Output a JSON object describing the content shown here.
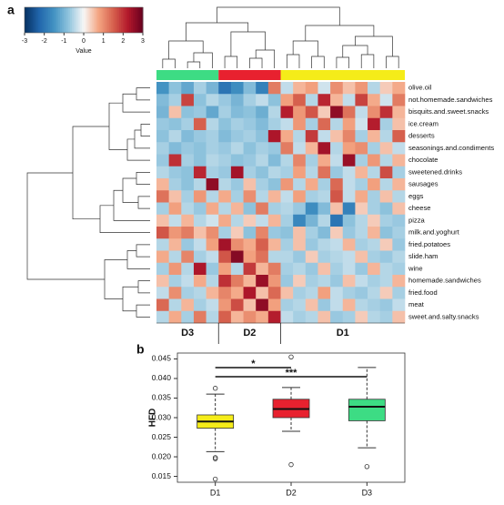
{
  "chart_data": [
    {
      "type": "heatmap",
      "panel": "a",
      "rows": [
        "olive.oil",
        "not.homemade.sandwiches",
        "bisquits.and.sweet.snacks",
        "ice.cream",
        "desserts",
        "seasonings.and.condiments",
        "chocolate",
        "sweetened.drinks",
        "sausages",
        "eggs",
        "cheese",
        "pizza",
        "milk.and.yoghurt",
        "fried.potatoes",
        "slide.ham",
        "wine",
        "homemade.sandwiches",
        "fried.food",
        "meat",
        "sweet.and.salty.snacks"
      ],
      "groups": [
        {
          "name": "D3",
          "color": "#3ddc84",
          "columns": 5
        },
        {
          "name": "D2",
          "color": "#e8212f",
          "columns": 5
        },
        {
          "name": "D1",
          "color": "#f5ec19",
          "columns": 10
        }
      ],
      "colorbar": {
        "label": "Value",
        "lim": [
          -3,
          3
        ],
        "ticks": [
          -3,
          -2,
          -1,
          0,
          1,
          2,
          3
        ],
        "colors": [
          "#053061",
          "#2166ac",
          "#4393c3",
          "#92c5de",
          "#f7f7f7",
          "#f4a582",
          "#d6604d",
          "#b2182b",
          "#67001f"
        ]
      },
      "values": [
        [
          -1.5,
          -0.8,
          -1.2,
          -0.6,
          -1.0,
          -2.0,
          -1.6,
          -0.9,
          -1.8,
          1.2,
          -0.4,
          0.6,
          0.8,
          -0.3,
          1.0,
          0.5,
          0.9,
          -0.5,
          0.4,
          0.7
        ],
        [
          -0.9,
          -0.6,
          1.8,
          -0.8,
          -0.5,
          -0.7,
          -1.0,
          -0.6,
          -0.4,
          -0.8,
          0.8,
          1.5,
          -0.5,
          2.1,
          0.6,
          -0.4,
          1.8,
          0.7,
          -0.3,
          1.2
        ],
        [
          -1.0,
          0.5,
          -0.8,
          -0.7,
          -1.2,
          -0.6,
          -0.9,
          -0.8,
          -1.1,
          -0.5,
          2.2,
          0.9,
          1.6,
          0.4,
          2.6,
          1.3,
          -0.4,
          1.0,
          2.0,
          0.6
        ],
        [
          -0.7,
          -0.8,
          -0.6,
          1.5,
          -0.5,
          -0.8,
          -0.6,
          -0.7,
          -0.9,
          -0.6,
          -0.4,
          0.9,
          -0.6,
          1.4,
          -0.5,
          0.8,
          -0.3,
          2.2,
          -0.6,
          0.5
        ],
        [
          -0.8,
          -0.5,
          -0.9,
          -0.7,
          -0.6,
          -0.9,
          -0.7,
          -0.6,
          -0.8,
          2.3,
          0.7,
          -0.5,
          1.9,
          -0.4,
          0.5,
          1.1,
          -0.6,
          0.6,
          -0.5,
          1.5
        ],
        [
          -0.6,
          -0.9,
          -0.7,
          -0.8,
          -0.6,
          -0.7,
          -0.5,
          -0.8,
          -0.6,
          -0.7,
          1.2,
          -0.4,
          0.6,
          2.4,
          -0.5,
          0.8,
          1.0,
          -0.6,
          0.5,
          -0.4
        ],
        [
          -0.7,
          2.0,
          -0.6,
          -0.8,
          -0.5,
          -0.6,
          -0.8,
          -0.7,
          -0.5,
          -0.9,
          -0.5,
          1.1,
          -0.6,
          0.7,
          -0.4,
          2.5,
          -0.6,
          0.9,
          -0.5,
          0.6
        ],
        [
          -0.5,
          -0.7,
          -0.8,
          2.1,
          -0.6,
          -0.7,
          2.4,
          -0.6,
          -0.8,
          -0.5,
          -0.6,
          0.8,
          -0.5,
          1.3,
          -0.7,
          -0.4,
          0.6,
          -0.5,
          1.7,
          -0.6
        ],
        [
          0.6,
          -0.6,
          -0.8,
          -0.5,
          2.6,
          -0.5,
          -0.7,
          0.5,
          -0.6,
          -0.8,
          0.9,
          -0.5,
          0.7,
          -0.6,
          1.4,
          -0.4,
          -0.6,
          0.8,
          -0.5,
          0.6
        ],
        [
          1.3,
          0.5,
          -0.6,
          0.9,
          -0.5,
          0.7,
          -0.6,
          1.0,
          -0.5,
          0.6,
          -0.4,
          0.8,
          -0.6,
          -0.5,
          1.6,
          -0.4,
          0.7,
          -0.6,
          0.5,
          -0.5
        ],
        [
          -0.6,
          0.8,
          -0.5,
          -0.7,
          0.7,
          -0.5,
          0.6,
          -0.8,
          1.2,
          -0.6,
          -0.5,
          -0.7,
          -1.6,
          -0.9,
          0.5,
          -1.8,
          0.4,
          -0.6,
          -0.8,
          0.5
        ],
        [
          0.5,
          -0.4,
          0.6,
          -0.5,
          -0.3,
          0.7,
          -0.5,
          0.4,
          -0.4,
          0.6,
          -0.6,
          -1.7,
          -1.0,
          -0.5,
          -2.0,
          -0.8,
          -0.5,
          0.4,
          -0.6,
          -0.7
        ],
        [
          1.6,
          0.9,
          1.2,
          0.5,
          1.0,
          -0.6,
          0.4,
          -0.8,
          1.1,
          -0.7,
          -0.8,
          0.5,
          -0.6,
          -0.9,
          0.4,
          -0.7,
          -0.5,
          0.6,
          -0.8,
          -0.6
        ],
        [
          -0.5,
          0.6,
          -0.7,
          -0.4,
          0.8,
          2.4,
          1.0,
          0.7,
          1.5,
          0.6,
          -0.6,
          0.5,
          -0.7,
          -0.5,
          -0.4,
          0.6,
          -0.6,
          -0.5,
          0.4,
          -0.7
        ],
        [
          0.7,
          -0.5,
          1.1,
          -0.6,
          -0.4,
          1.6,
          2.7,
          0.8,
          1.3,
          -0.5,
          -0.5,
          -0.7,
          0.4,
          -0.6,
          -0.5,
          -0.4,
          0.5,
          -0.6,
          -0.7,
          -0.5
        ],
        [
          -0.6,
          0.9,
          -0.5,
          2.3,
          -0.7,
          0.8,
          -0.5,
          1.9,
          0.6,
          1.2,
          -0.6,
          -0.5,
          -0.7,
          0.5,
          -0.6,
          -0.4,
          -0.7,
          0.6,
          -0.5,
          -0.6
        ],
        [
          0.5,
          -0.6,
          -0.4,
          0.7,
          -0.5,
          2.0,
          1.2,
          0.6,
          2.5,
          0.9,
          -0.7,
          0.4,
          -0.6,
          -0.5,
          -0.7,
          0.5,
          -0.4,
          -0.6,
          -0.5,
          0.6
        ],
        [
          -0.4,
          1.0,
          -0.6,
          -0.5,
          0.6,
          1.1,
          0.7,
          2.3,
          0.5,
          1.4,
          0.5,
          -0.6,
          -0.5,
          0.8,
          -0.4,
          -0.6,
          -0.7,
          -0.5,
          0.4,
          -0.6
        ],
        [
          1.4,
          -0.5,
          0.6,
          -0.6,
          -0.4,
          0.9,
          1.7,
          0.5,
          2.6,
          0.8,
          -0.6,
          -0.5,
          0.5,
          -0.7,
          -0.4,
          0.6,
          -0.5,
          -0.6,
          -0.7,
          -0.4
        ],
        [
          -0.5,
          0.7,
          -0.6,
          1.2,
          -0.5,
          1.5,
          0.6,
          1.0,
          0.7,
          2.2,
          -0.4,
          -0.6,
          -0.5,
          0.5,
          -0.7,
          -0.6,
          0.4,
          -0.5,
          -0.6,
          0.5
        ]
      ]
    },
    {
      "type": "box",
      "panel": "b",
      "ylabel": "HFD",
      "categories": [
        "D1",
        "D2",
        "D3"
      ],
      "colors": [
        "#f5ec19",
        "#e8212f",
        "#3ddc84"
      ],
      "boxes": [
        {
          "whisker_low": 0.0213,
          "q1": 0.0273,
          "median": 0.029,
          "q3": 0.0307,
          "whisker_high": 0.036,
          "outliers": [
            0.0375,
            0.0198,
            0.0195,
            0.0143
          ]
        },
        {
          "whisker_low": 0.0265,
          "q1": 0.03,
          "median": 0.0322,
          "q3": 0.0347,
          "whisker_high": 0.0377,
          "outliers": [
            0.0455,
            0.018
          ]
        },
        {
          "whisker_low": 0.0223,
          "q1": 0.0292,
          "median": 0.0328,
          "q3": 0.0347,
          "whisker_high": 0.0428,
          "outliers": [
            0.0175
          ]
        }
      ],
      "annotations": [
        {
          "text": "*",
          "between": [
            0,
            1
          ]
        },
        {
          "text": "***",
          "between": [
            0,
            2
          ]
        }
      ],
      "ylim": [
        0.0135,
        0.0465
      ],
      "yticks": [
        0.015,
        {
          "value": 0.02,
          "label": "0.020"
        },
        0.025,
        {
          "value": 0.03,
          "label": "0.030"
        },
        0.035,
        {
          "value": 0.04,
          "label": "0.040"
        },
        0.045
      ]
    }
  ]
}
